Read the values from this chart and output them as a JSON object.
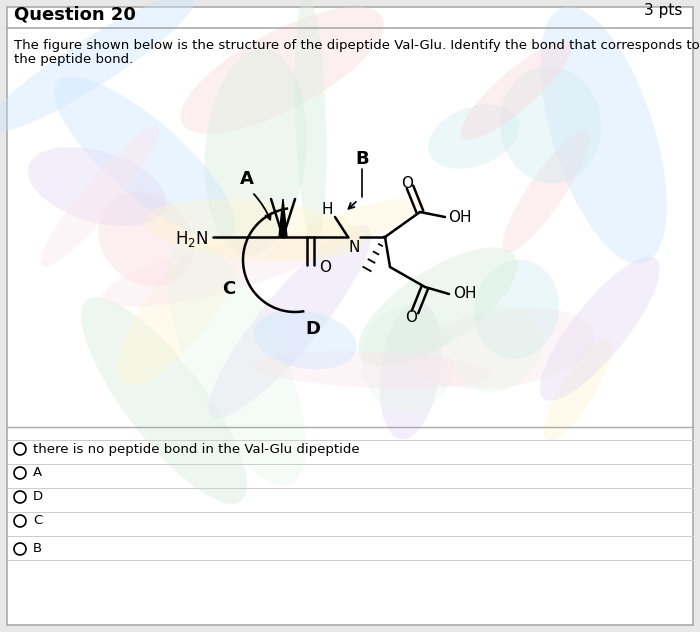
{
  "title": "Question 20",
  "pts": "3 pts",
  "question_line1": "The figure shown below is the structure of the dipeptide Val-Glu. Identify the bond that corresponds to",
  "question_line2": "the peptide bond.",
  "bg_color": "#e8e8e8",
  "panel_color": "#ffffff",
  "options": [
    "there is no peptide bond in the Val-Glu dipeptide",
    "A",
    "D",
    "C",
    "B"
  ],
  "swirl_colors": [
    "#f8d7da",
    "#d4edda",
    "#cce5ff",
    "#fff3cd",
    "#e2d9f3",
    "#fce4ec",
    "#e8f5e9",
    "#d1ecf1"
  ],
  "swirl_seed": 42,
  "swirl_count": 30
}
